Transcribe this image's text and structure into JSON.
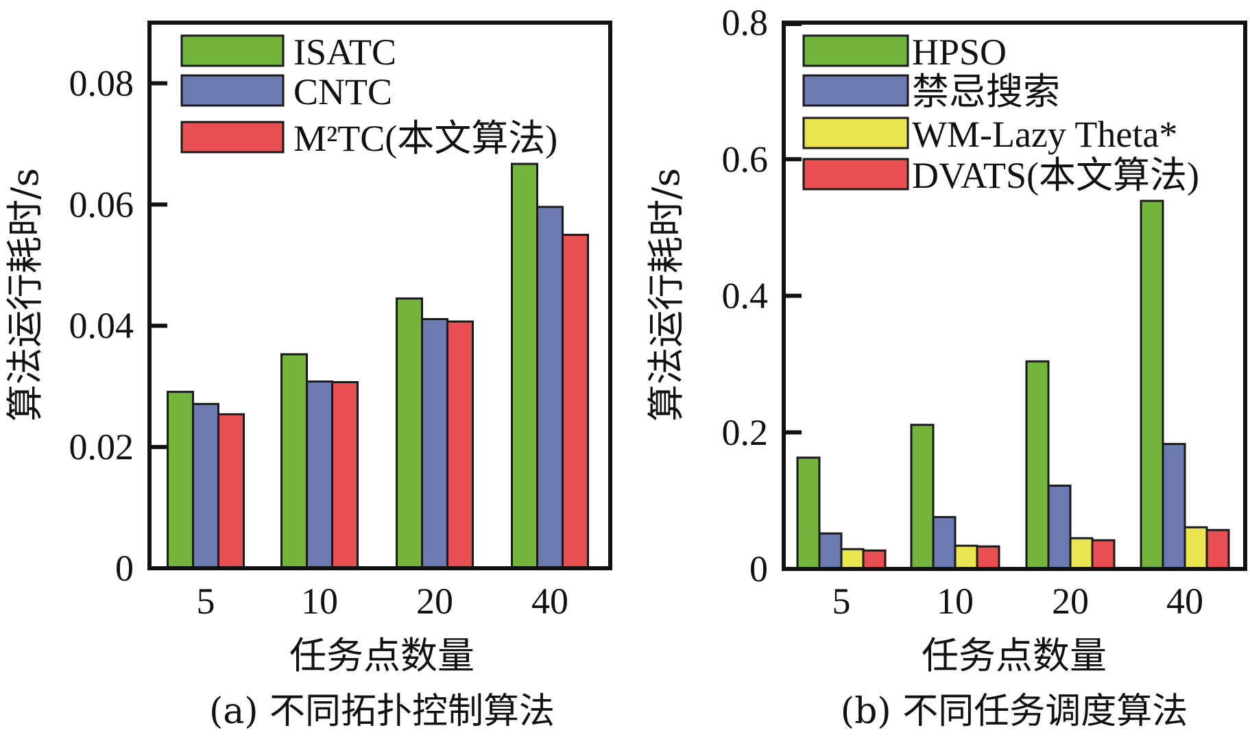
{
  "chart_data": [
    {
      "type": "bar",
      "panel": "a",
      "caption": "(a) 不同拓扑控制算法",
      "xlabel": "任务点数量",
      "ylabel": "算法运行耗时/s",
      "categories": [
        "5",
        "10",
        "20",
        "40"
      ],
      "ylim": [
        0,
        0.09
      ],
      "yticks": [
        0,
        0.02,
        0.04,
        0.06,
        0.08
      ],
      "ytick_labels": [
        "0",
        "0.02",
        "0.04",
        "0.06",
        "0.08"
      ],
      "legend_position": "top-left",
      "grid": false,
      "series": [
        {
          "name": "ISATC",
          "color": "#72b43c",
          "values": [
            0.0291,
            0.0353,
            0.0445,
            0.0667
          ]
        },
        {
          "name": "CNTC",
          "color": "#6b7bb2",
          "values": [
            0.0271,
            0.0308,
            0.0411,
            0.0596
          ]
        },
        {
          "name": "M²TC(本文算法)",
          "color": "#e84f50",
          "values": [
            0.0254,
            0.0307,
            0.0407,
            0.055
          ]
        }
      ]
    },
    {
      "type": "bar",
      "panel": "b",
      "caption": "(b) 不同任务调度算法",
      "xlabel": "任务点数量",
      "ylabel": "算法运行耗时/s",
      "categories": [
        "5",
        "10",
        "20",
        "40"
      ],
      "ylim": [
        0,
        0.8
      ],
      "yticks": [
        0,
        0.2,
        0.4,
        0.6,
        0.8
      ],
      "ytick_labels": [
        "0",
        "0.2",
        "0.4",
        "0.6",
        "0.8"
      ],
      "legend_position": "top-left",
      "grid": false,
      "series": [
        {
          "name": "HPSO",
          "color": "#72b43c",
          "values": [
            0.163,
            0.211,
            0.304,
            0.539
          ]
        },
        {
          "name": "禁忌搜索",
          "color": "#6b7bb2",
          "values": [
            0.052,
            0.076,
            0.122,
            0.183
          ]
        },
        {
          "name": "WM-Lazy Theta*",
          "color": "#ece552",
          "values": [
            0.029,
            0.034,
            0.045,
            0.061
          ]
        },
        {
          "name": "DVATS(本文算法)",
          "color": "#e84f50",
          "values": [
            0.027,
            0.033,
            0.042,
            0.057
          ]
        }
      ]
    }
  ]
}
